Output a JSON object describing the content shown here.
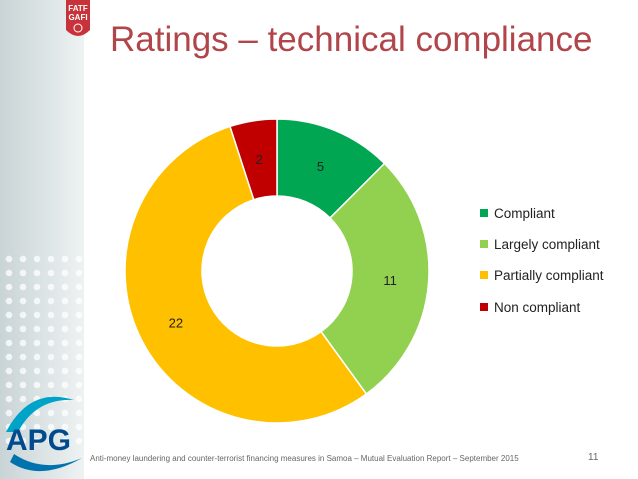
{
  "slide": {
    "title": "Ratings – technical compliance",
    "footer": "Anti-money laundering and counter-terrorist financing measures in Samoa – Mutual Evaluation Report – September 2015",
    "page_number": "11"
  },
  "logos": {
    "fatf_line1": "FATF",
    "fatf_line2": "GAFI",
    "apg": "APG"
  },
  "colors": {
    "title": "#b0454a",
    "compliant": "#00a651",
    "largely_compliant": "#92d050",
    "partially_compliant": "#ffc000",
    "non_compliant": "#c00000"
  },
  "chart_data": {
    "type": "pie",
    "style": "doughnut",
    "title": "",
    "categories": [
      "Compliant",
      "Largely compliant",
      "Partially compliant",
      "Non compliant"
    ],
    "values": [
      5,
      11,
      22,
      2
    ],
    "colors": [
      "#00a651",
      "#92d050",
      "#ffc000",
      "#c00000"
    ],
    "legend": "right"
  }
}
